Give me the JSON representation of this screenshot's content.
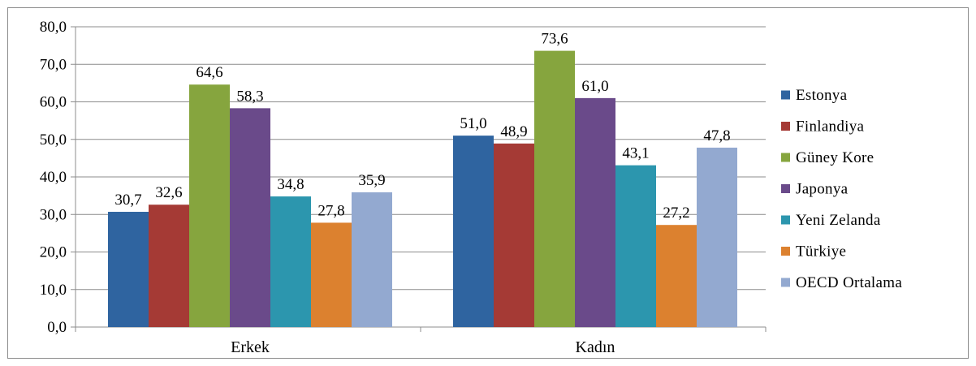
{
  "chart_data": {
    "type": "bar",
    "title": "",
    "xlabel": "",
    "ylabel": "",
    "ylim": [
      0,
      80
    ],
    "yticks": [
      "0,0",
      "10,0",
      "20,0",
      "30,0",
      "40,0",
      "50,0",
      "60,0",
      "70,0",
      "80,0"
    ],
    "grid": true,
    "legend_position": "right",
    "categories": [
      "Erkek",
      "Kadın"
    ],
    "series": [
      {
        "name": "Estonya",
        "color": "#2f64a0",
        "values": [
          30.7,
          51.0
        ],
        "labels": [
          "30,7",
          "51,0"
        ]
      },
      {
        "name": "Finlandiya",
        "color": "#a53a35",
        "values": [
          32.6,
          48.9
        ],
        "labels": [
          "32,6",
          "48,9"
        ]
      },
      {
        "name": "Güney Kore",
        "color": "#86a53e",
        "values": [
          64.6,
          73.6
        ],
        "labels": [
          "64,6",
          "73,6"
        ]
      },
      {
        "name": "Japonya",
        "color": "#6a4a8a",
        "values": [
          58.3,
          61.0
        ],
        "labels": [
          "58,3",
          "61,0"
        ]
      },
      {
        "name": "Yeni Zelanda",
        "color": "#2c96ae",
        "values": [
          34.8,
          43.1
        ],
        "labels": [
          "34,8",
          "43,1"
        ]
      },
      {
        "name": "Türkiye",
        "color": "#dc812f",
        "values": [
          27.8,
          27.2
        ],
        "labels": [
          "27,8",
          "27,2"
        ]
      },
      {
        "name": "OECD Ortalama",
        "color": "#93a9d0",
        "values": [
          35.9,
          47.8
        ],
        "labels": [
          "35,9",
          "47,8"
        ]
      }
    ]
  }
}
